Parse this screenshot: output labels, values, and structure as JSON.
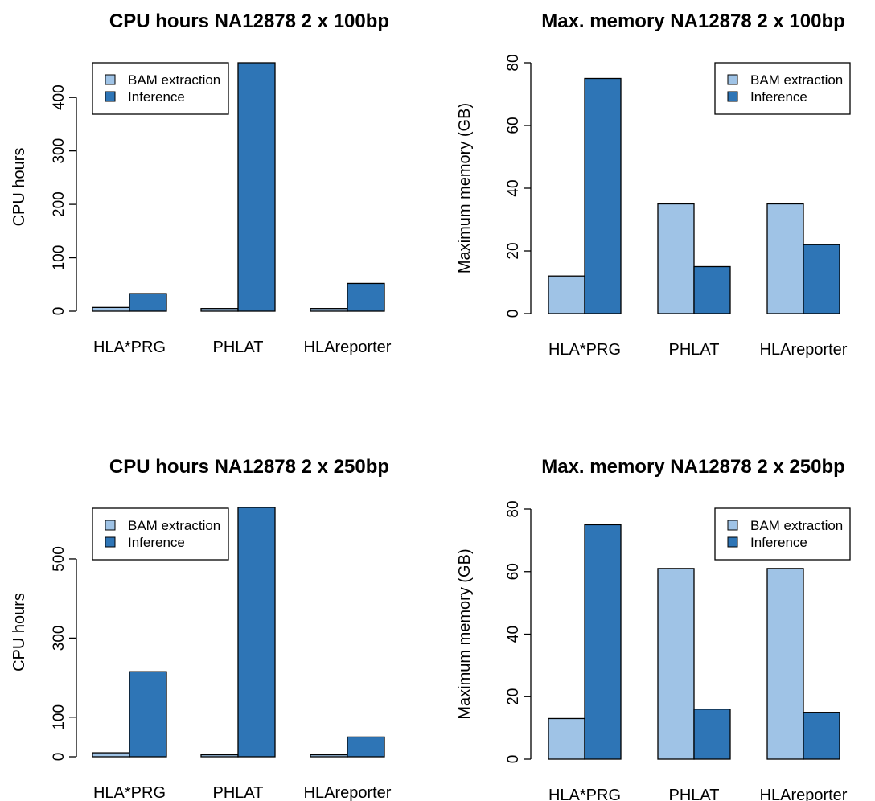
{
  "colors": {
    "bam": "#9fc3e6",
    "inference": "#2e75b6",
    "stroke": "#000000"
  },
  "chart_data": [
    {
      "type": "bar",
      "title": "CPU hours NA12878 2 x 100bp",
      "ylabel": "CPU hours",
      "xlabel": "",
      "categories": [
        "HLA*PRG",
        "PHLAT",
        "HLAreporter"
      ],
      "series": [
        {
          "name": "BAM extraction",
          "values": [
            7,
            5,
            5
          ]
        },
        {
          "name": "Inference",
          "values": [
            33,
            465,
            52
          ]
        }
      ],
      "ylim": [
        0,
        465
      ],
      "yticks": [
        0,
        100,
        200,
        300,
        400
      ],
      "legend": "top-left"
    },
    {
      "type": "bar",
      "title": "Max. memory NA12878 2 x 100bp",
      "ylabel": "Maximum memory (GB)",
      "xlabel": "",
      "categories": [
        "HLA*PRG",
        "PHLAT",
        "HLAreporter"
      ],
      "series": [
        {
          "name": "BAM extraction",
          "values": [
            12,
            35,
            35
          ]
        },
        {
          "name": "Inference",
          "values": [
            75,
            15,
            22
          ]
        }
      ],
      "ylim": [
        0,
        80
      ],
      "yticks": [
        0,
        20,
        40,
        60,
        80
      ],
      "legend": "top-right"
    },
    {
      "type": "bar",
      "title": "CPU hours NA12878 2 x 250bp",
      "ylabel": "CPU hours",
      "xlabel": "",
      "categories": [
        "HLA*PRG",
        "PHLAT",
        "HLAreporter"
      ],
      "series": [
        {
          "name": "BAM extraction",
          "values": [
            10,
            5,
            5
          ]
        },
        {
          "name": "Inference",
          "values": [
            215,
            630,
            50
          ]
        }
      ],
      "ylim": [
        0,
        630
      ],
      "yticks": [
        0,
        100,
        300,
        500
      ],
      "legend": "top-left"
    },
    {
      "type": "bar",
      "title": "Max. memory NA12878 2 x 250bp",
      "ylabel": "Maximum memory (GB)",
      "xlabel": "",
      "categories": [
        "HLA*PRG",
        "PHLAT",
        "HLAreporter"
      ],
      "series": [
        {
          "name": "BAM extraction",
          "values": [
            13,
            61,
            61
          ]
        },
        {
          "name": "Inference",
          "values": [
            75,
            16,
            15
          ]
        }
      ],
      "ylim": [
        0,
        80
      ],
      "yticks": [
        0,
        20,
        40,
        60,
        80
      ],
      "legend": "top-right"
    }
  ]
}
